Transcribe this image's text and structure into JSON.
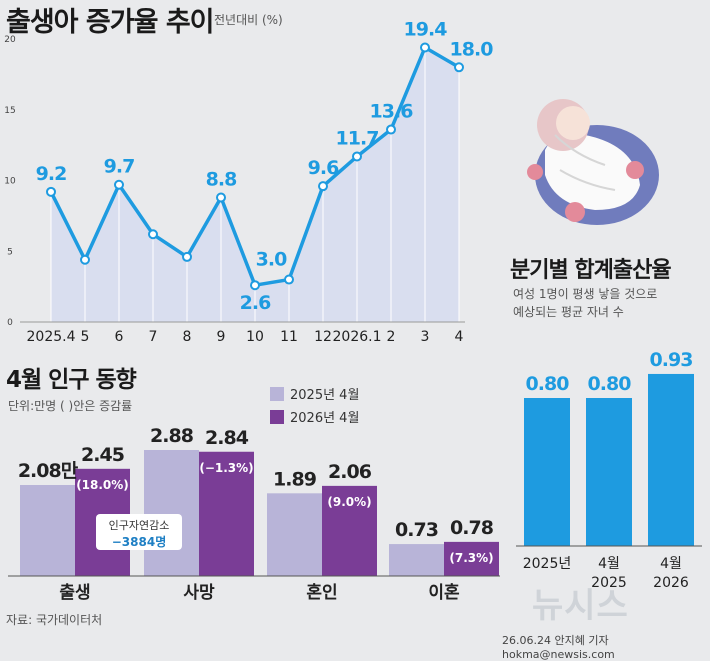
{
  "colors": {
    "background": "#e9eaec",
    "line": "#1e9be0",
    "area": "#d9deef",
    "bar_2025": "#b8b4d8",
    "bar_2026": "#7a3d96",
    "tfr_bar": "#1e9be0"
  },
  "header": {
    "title": "출생아 증가율 추이",
    "unit_note": "전년대비 (%)"
  },
  "section_pop": {
    "title": "4월 인구 동향",
    "unit_note": "단위:만명 ( )안은 증감률",
    "legend": [
      "2025년 4월",
      "2026년 4월"
    ],
    "callout_label": "인구자연감소",
    "callout_value": "−3884명"
  },
  "section_tfr": {
    "title": "분기별 합계출산율",
    "subtitle_line1": "여성 1명이 평생 낳을 것으로",
    "subtitle_line2": "예상되는 평균 자녀 수"
  },
  "footer": {
    "source": "자료: 국가데이터처",
    "credit": "26.06.24 안지혜 기자 hokma@newsis.com",
    "logo": "뉴시스"
  },
  "chart_data": [
    {
      "type": "area",
      "title": "출생아 증가율 추이",
      "ylabel": "전년대비 (%)",
      "categories": [
        "2025.4",
        "5",
        "6",
        "7",
        "8",
        "9",
        "10",
        "11",
        "12",
        "2026.1",
        "2",
        "3",
        "4"
      ],
      "values": [
        9.2,
        4.4,
        9.7,
        6.2,
        4.6,
        8.8,
        2.6,
        3.0,
        9.6,
        11.7,
        13.6,
        19.4,
        18.0
      ],
      "data_labels": [
        "9.2",
        "",
        "9.7",
        "",
        "",
        "8.8",
        "2.6",
        "3.0",
        "9.6",
        "11.7",
        "13.6",
        "19.4",
        "18.0"
      ],
      "yticks": [
        0,
        5,
        10,
        15,
        20
      ],
      "ylim": [
        0,
        20
      ]
    },
    {
      "type": "bar",
      "title": "4월 인구 동향",
      "categories": [
        "출생",
        "사망",
        "혼인",
        "이혼"
      ],
      "series": [
        {
          "name": "2025년 4월",
          "values": [
            2.08,
            2.88,
            1.89,
            0.73
          ],
          "labels": [
            "2.08만",
            "2.88",
            "1.89",
            "0.73"
          ]
        },
        {
          "name": "2026년 4월",
          "values": [
            2.45,
            2.84,
            2.06,
            0.78
          ],
          "labels": [
            "2.45",
            "2.84",
            "2.06",
            "0.78"
          ],
          "changes": [
            "(18.0%)",
            "(−1.3%)",
            "(9.0%)",
            "(7.3%)"
          ]
        }
      ],
      "ylim": [
        0,
        3.2
      ]
    },
    {
      "type": "bar",
      "title": "분기별 합계출산율",
      "categories": [
        [
          "2025년"
        ],
        [
          "4월",
          "2025"
        ],
        [
          "4월",
          "2026"
        ]
      ],
      "values": [
        0.8,
        0.8,
        0.93
      ],
      "labels": [
        "0.80",
        "0.80",
        "0.93"
      ],
      "ylim": [
        0,
        1.0
      ]
    }
  ]
}
